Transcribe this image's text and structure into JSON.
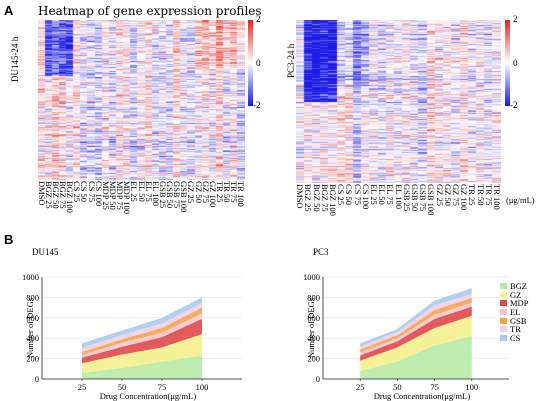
{
  "panel_a": {
    "letter": "A",
    "title": "Heatmap of gene expression profiles",
    "colorbar": {
      "max_label": "2",
      "mid_label": "0",
      "min_label": "-2",
      "colors": {
        "high": "#e8281e",
        "mid": "#ffffff",
        "low": "#1a1ae6"
      }
    },
    "unit": "(μg/mL)",
    "heatmaps": [
      {
        "row_label": "DU145-24 h",
        "columns": [
          "DMSO",
          "BGZ 25",
          "BGZ 50",
          "BGZ 75",
          "BGZ 100",
          "CS 25",
          "CS 50",
          "CS 75",
          "CS 100",
          "MDP 25",
          "MDP 50",
          "MDP 75",
          "MDP 100",
          "EL 25",
          "EL 50",
          "EL 75",
          "EL 100",
          "GSB 25",
          "GSB 50",
          "GSB 75",
          "GSB 100",
          "GZ 25",
          "GZ 50",
          "GZ 75",
          "GZ 100",
          "TR 25",
          "TR 50",
          "TR 75",
          "TR 100"
        ]
      },
      {
        "row_label": "PC3-24 h",
        "columns": [
          "DMSO",
          "BGZ 25",
          "BGZ 50",
          "BGZ 75",
          "BGZ 100",
          "CS 25",
          "CS 50",
          "CS 75",
          "CS 100",
          "EL 25",
          "EL 50",
          "EL 75",
          "EL 100",
          "GSB 25",
          "GSB 50",
          "GSB 75",
          "GSB 100",
          "GZ 25",
          "GZ 50",
          "GZ 75",
          "GZ 100",
          "TR 25",
          "TR 50",
          "TR 75",
          "TR 100"
        ]
      }
    ]
  },
  "panel_b": {
    "letter": "B",
    "legend": [
      {
        "name": "BGZ",
        "color": "#b8eaa6"
      },
      {
        "name": "GZ",
        "color": "#f4ef8c"
      },
      {
        "name": "MDP",
        "color": "#e0484a"
      },
      {
        "name": "EL",
        "color": "#f7c5d2"
      },
      {
        "name": "GSB",
        "color": "#f2a44a"
      },
      {
        "name": "TR",
        "color": "#f6cee6"
      },
      {
        "name": "CS",
        "color": "#a8cbee"
      }
    ]
  },
  "chart_data": [
    {
      "type": "area",
      "stacked": true,
      "title": "DU145",
      "xlabel": "Drug Concentration(μg/mL)",
      "ylabel": "Number of DEGs",
      "x": [
        25,
        50,
        75,
        100
      ],
      "xticks": [
        25,
        50,
        75,
        100
      ],
      "xlim": [
        0,
        125
      ],
      "ylim": [
        0,
        1000
      ],
      "yticks": [
        0,
        200,
        400,
        600,
        800,
        1000
      ],
      "grid": true,
      "series": [
        {
          "name": "BGZ",
          "values": [
            60,
            110,
            170,
            230
          ]
        },
        {
          "name": "GZ",
          "values": [
            95,
            130,
            140,
            210
          ]
        },
        {
          "name": "MDP",
          "values": [
            55,
            75,
            100,
            150
          ]
        },
        {
          "name": "EL",
          "values": [
            25,
            40,
            45,
            55
          ]
        },
        {
          "name": "GSB",
          "values": [
            30,
            35,
            45,
            55
          ]
        },
        {
          "name": "TR",
          "values": [
            40,
            40,
            45,
            45
          ]
        },
        {
          "name": "CS",
          "values": [
            45,
            45,
            55,
            55
          ]
        }
      ]
    },
    {
      "type": "area",
      "stacked": true,
      "title": "PC3",
      "xlabel": "Drug Concentration(μg/mL)",
      "ylabel": "Number of DEGs",
      "x": [
        25,
        50,
        75,
        100
      ],
      "xticks": [
        25,
        50,
        75,
        100
      ],
      "xlim": [
        0,
        125
      ],
      "ylim": [
        0,
        1000
      ],
      "yticks": [
        0,
        200,
        400,
        600,
        800,
        1000
      ],
      "grid": true,
      "series": [
        {
          "name": "BGZ",
          "values": [
            80,
            170,
            330,
            420
          ]
        },
        {
          "name": "GZ",
          "values": [
            100,
            140,
            170,
            200
          ]
        },
        {
          "name": "MDP",
          "values": [
            50,
            60,
            90,
            90
          ]
        },
        {
          "name": "EL",
          "values": [
            30,
            30,
            40,
            40
          ]
        },
        {
          "name": "GSB",
          "values": [
            30,
            30,
            45,
            45
          ]
        },
        {
          "name": "TR",
          "values": [
            30,
            30,
            45,
            40
          ]
        },
        {
          "name": "CS",
          "values": [
            30,
            30,
            50,
            55
          ]
        }
      ]
    }
  ]
}
